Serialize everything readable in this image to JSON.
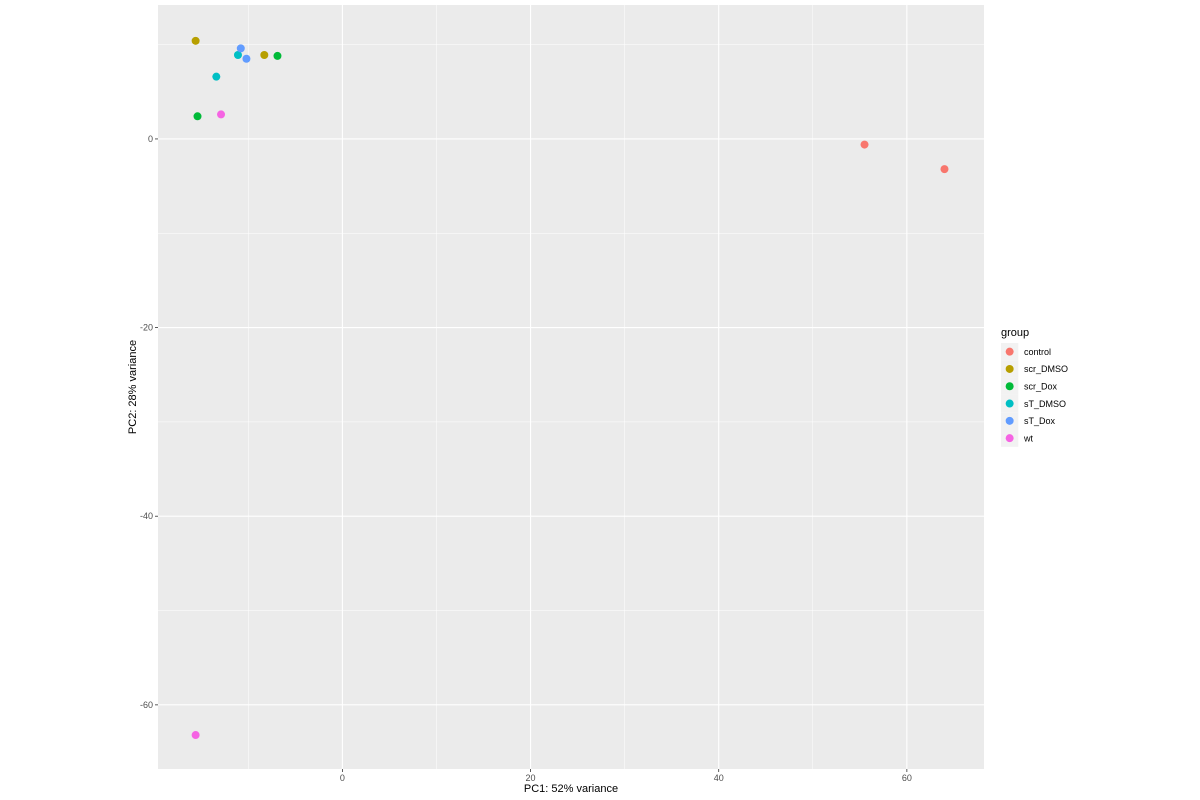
{
  "chart_data": {
    "type": "scatter",
    "xlabel": "PC1: 52% variance",
    "ylabel": "PC2: 28% variance",
    "xlim": [
      -19.6,
      68.2
    ],
    "ylim": [
      -66.8,
      14.2
    ],
    "x_ticks": [
      0,
      20,
      40,
      60
    ],
    "y_ticks": [
      0,
      -20,
      -40,
      -60
    ],
    "grid": true,
    "background": "#EBEBEB",
    "legend": {
      "title": "group",
      "position": "right"
    },
    "series": [
      {
        "name": "control",
        "color": "#F8766D",
        "points": [
          [
            55.5,
            -0.6
          ],
          [
            64.0,
            -3.2
          ]
        ]
      },
      {
        "name": "scr_DMSO",
        "color": "#B79F00",
        "points": [
          [
            -15.6,
            10.4
          ],
          [
            -8.3,
            8.9
          ]
        ]
      },
      {
        "name": "scr_Dox",
        "color": "#00BA38",
        "points": [
          [
            -15.4,
            2.4
          ],
          [
            -6.9,
            8.8
          ]
        ]
      },
      {
        "name": "sT_DMSO",
        "color": "#00BFC4",
        "points": [
          [
            -13.4,
            6.6
          ],
          [
            -11.1,
            8.9
          ]
        ]
      },
      {
        "name": "sT_Dox",
        "color": "#619CFF",
        "points": [
          [
            -10.8,
            9.6
          ],
          [
            -10.2,
            8.5
          ]
        ]
      },
      {
        "name": "wt",
        "color": "#F564E3",
        "points": [
          [
            -12.9,
            2.6
          ],
          [
            -15.6,
            -63.2
          ]
        ]
      }
    ]
  }
}
